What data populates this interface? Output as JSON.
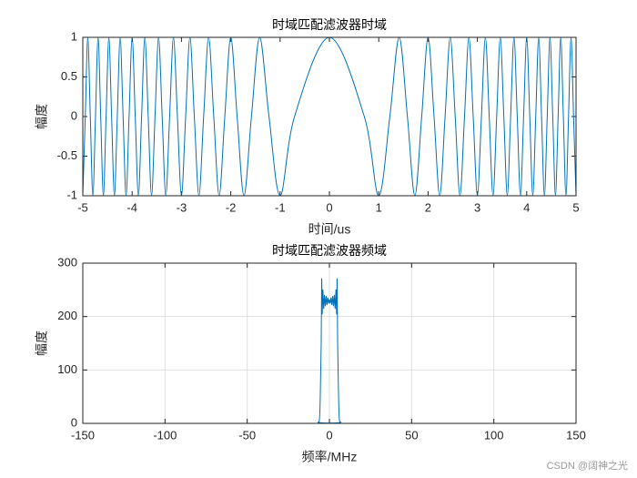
{
  "chart_data": [
    {
      "type": "line",
      "title": "时域匹配滤波器时域",
      "xlabel": "时间/us",
      "ylabel": "幅度",
      "color": "#0072bd",
      "grid": false,
      "x": [
        -5,
        -4.95,
        -4.899,
        -4.848,
        -4.796,
        -4.743,
        -4.69,
        -4.637,
        -4.583,
        -4.528,
        -4.472,
        -4.416,
        -4.359,
        -4.301,
        -4.243,
        -4.183,
        -4.123,
        -4.062,
        -4,
        -3.937,
        -3.873,
        -3.808,
        -3.742,
        -3.674,
        -3.606,
        -3.536,
        -3.464,
        -3.391,
        -3.317,
        -3.24,
        -3.162,
        -3.082,
        -3,
        -2.915,
        -2.828,
        -2.739,
        -2.646,
        -2.55,
        -2.449,
        -2.345,
        -2.236,
        -2.121,
        -2,
        -1.871,
        -1.732,
        -1.581,
        -1.414,
        -1.225,
        -1,
        -0.707,
        0,
        0.707,
        1,
        1.225,
        1.414,
        1.581,
        1.732,
        1.871,
        2,
        2.121,
        2.236,
        2.345,
        2.449,
        2.55,
        2.646,
        2.739,
        2.828,
        2.915,
        3,
        3.082,
        3.162,
        3.24,
        3.317,
        3.391,
        3.464,
        3.536,
        3.606,
        3.674,
        3.742,
        3.808,
        3.873,
        3.937,
        4,
        4.062,
        4.123,
        4.183,
        4.243,
        4.301,
        4.359,
        4.416,
        4.472,
        4.528,
        4.583,
        4.637,
        4.69,
        4.743,
        4.796,
        4.848,
        4.899,
        4.95,
        5
      ],
      "values": [
        -1,
        0,
        1,
        0,
        -1,
        0,
        1,
        0,
        -1,
        0,
        1,
        0,
        -1,
        0,
        1,
        0,
        -1,
        0,
        1,
        0,
        -1,
        0,
        1,
        0,
        -1,
        0,
        1,
        0,
        -1,
        0,
        1,
        0,
        -1,
        0,
        1,
        0,
        -1,
        0,
        1,
        0,
        -1,
        0,
        1,
        0,
        -1,
        0,
        1,
        0,
        -1,
        0,
        1,
        0,
        -1,
        0,
        1,
        0,
        -1,
        0,
        1,
        0,
        -1,
        0,
        1,
        0,
        -1,
        0,
        1,
        0,
        -1,
        0,
        1,
        0,
        -1,
        0,
        1,
        0,
        -1,
        0,
        1,
        0,
        -1,
        0,
        1,
        0,
        -1,
        0,
        1,
        0,
        -1,
        0,
        1,
        0,
        -1,
        0,
        1,
        0,
        -1,
        0,
        1,
        0,
        -1
      ],
      "xlim": [
        -5,
        5
      ],
      "xticks": [
        -5,
        -4,
        -3,
        -2,
        -1,
        0,
        1,
        2,
        3,
        4,
        5
      ],
      "ylim": [
        -1,
        1
      ],
      "yticks": [
        -1,
        -0.5,
        0,
        0.5,
        1
      ]
    },
    {
      "type": "line",
      "title": "时域匹配滤波器频域",
      "xlabel": "频率/MHz",
      "ylabel": "幅度",
      "color": "#0072bd",
      "grid": true,
      "x": [
        -150,
        -10,
        -7,
        -6,
        -5.5,
        -5,
        -4.7,
        -4.4,
        -4,
        -3.5,
        -3,
        -2.5,
        -2,
        -1.5,
        -1,
        -0.5,
        0,
        0.5,
        1,
        1.5,
        2,
        2.5,
        3,
        3.5,
        4,
        4.4,
        4.7,
        5,
        5.5,
        6,
        7,
        10,
        150
      ],
      "values": [
        0,
        0,
        2,
        10,
        60,
        150,
        270,
        205,
        250,
        215,
        240,
        220,
        238,
        222,
        235,
        225,
        232,
        225,
        235,
        222,
        238,
        220,
        240,
        215,
        250,
        205,
        270,
        150,
        60,
        10,
        2,
        0,
        0
      ],
      "xlim": [
        -150,
        150
      ],
      "xticks": [
        -150,
        -100,
        -50,
        0,
        50,
        100,
        150
      ],
      "ylim": [
        0,
        300
      ],
      "yticks": [
        0,
        100,
        200,
        300
      ]
    }
  ],
  "watermark": "CSDN @阔神之光"
}
